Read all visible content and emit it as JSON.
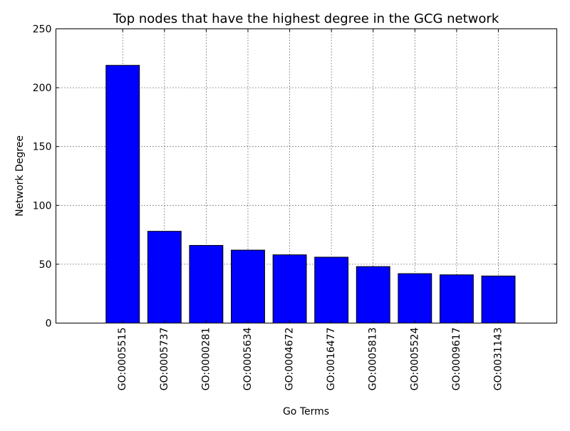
{
  "chart_data": {
    "type": "bar",
    "title": "Top nodes that have the highest degree in the GCG network",
    "xlabel": "Go Terms",
    "ylabel": "Network Degree",
    "categories": [
      "GO:0005515",
      "GO:0005737",
      "GO:0000281",
      "GO:0005634",
      "GO:0004672",
      "GO:0016477",
      "GO:0005813",
      "GO:0005524",
      "GO:0009617",
      "GO:0031143"
    ],
    "values": [
      219,
      78,
      66,
      62,
      58,
      56,
      48,
      42,
      41,
      40
    ],
    "ylim": [
      0,
      250
    ],
    "xlim": [
      -1.6,
      10.4
    ],
    "yticks": [
      0,
      50,
      100,
      150,
      200,
      250
    ],
    "grid": true,
    "bar_color": "#0000ff",
    "edge_color": "#000000"
  }
}
